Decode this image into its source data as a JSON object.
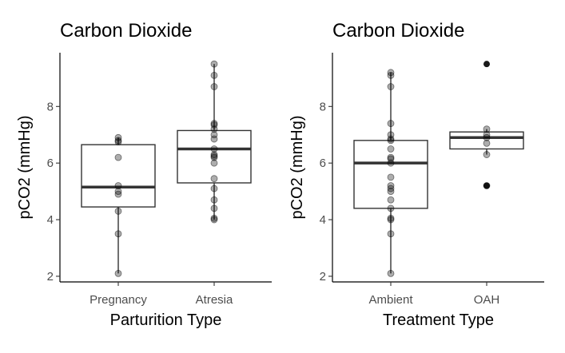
{
  "chart_data": [
    {
      "type": "box",
      "title": "Carbon Dioxide",
      "xlabel": "Parturition Type",
      "ylabel": "pCO2 (mmHg)",
      "ylim": [
        1.8,
        9.9
      ],
      "yticks": [
        "2",
        "4",
        "6",
        "8"
      ],
      "grid": false,
      "categories": [
        "Pregnancy",
        "Atresia"
      ],
      "boxes": [
        {
          "category": "Pregnancy",
          "q1": 4.45,
          "median": 5.15,
          "q3": 6.65,
          "whisker_low": 2.1,
          "whisker_high": 6.9
        },
        {
          "category": "Atresia",
          "q1": 5.3,
          "median": 6.5,
          "q3": 7.15,
          "whisker_low": 4.0,
          "whisker_high": 9.5
        }
      ],
      "points": [
        {
          "category": "Pregnancy",
          "values": [
            2.1,
            3.5,
            4.3,
            4.9,
            5.0,
            5.2,
            6.2,
            6.75,
            6.8,
            6.9
          ]
        },
        {
          "category": "Atresia",
          "values": [
            4.0,
            4.05,
            4.4,
            4.7,
            5.1,
            5.45,
            6.0,
            6.2,
            6.25,
            6.3,
            6.5,
            6.85,
            7.0,
            7.2,
            7.35,
            7.4,
            8.7,
            9.1,
            9.5
          ]
        }
      ]
    },
    {
      "type": "box",
      "title": "Carbon Dioxide",
      "xlabel": "Treatment Type",
      "ylabel": "pCO2 (mmHg)",
      "ylim": [
        1.8,
        9.9
      ],
      "yticks": [
        "2",
        "4",
        "6",
        "8"
      ],
      "grid": false,
      "categories": [
        "Ambient",
        "OAH"
      ],
      "boxes": [
        {
          "category": "Ambient",
          "q1": 4.4,
          "median": 6.0,
          "q3": 6.8,
          "whisker_low": 2.1,
          "whisker_high": 9.2
        },
        {
          "category": "OAH",
          "q1": 6.5,
          "median": 6.9,
          "q3": 7.1,
          "whisker_low": 6.3,
          "whisker_high": 7.2
        }
      ],
      "points": [
        {
          "category": "Ambient",
          "values": [
            2.1,
            3.5,
            4.0,
            4.05,
            4.4,
            4.7,
            5.0,
            5.1,
            5.2,
            5.5,
            6.0,
            6.15,
            6.2,
            6.5,
            6.8,
            6.85,
            7.0,
            7.4,
            8.7,
            9.1,
            9.2
          ]
        },
        {
          "category": "OAH",
          "values": [
            5.2,
            6.3,
            6.7,
            6.9,
            7.0,
            7.2
          ]
        }
      ],
      "outliers": [
        {
          "category": "OAH",
          "values": [
            5.2,
            9.5
          ]
        }
      ]
    }
  ]
}
